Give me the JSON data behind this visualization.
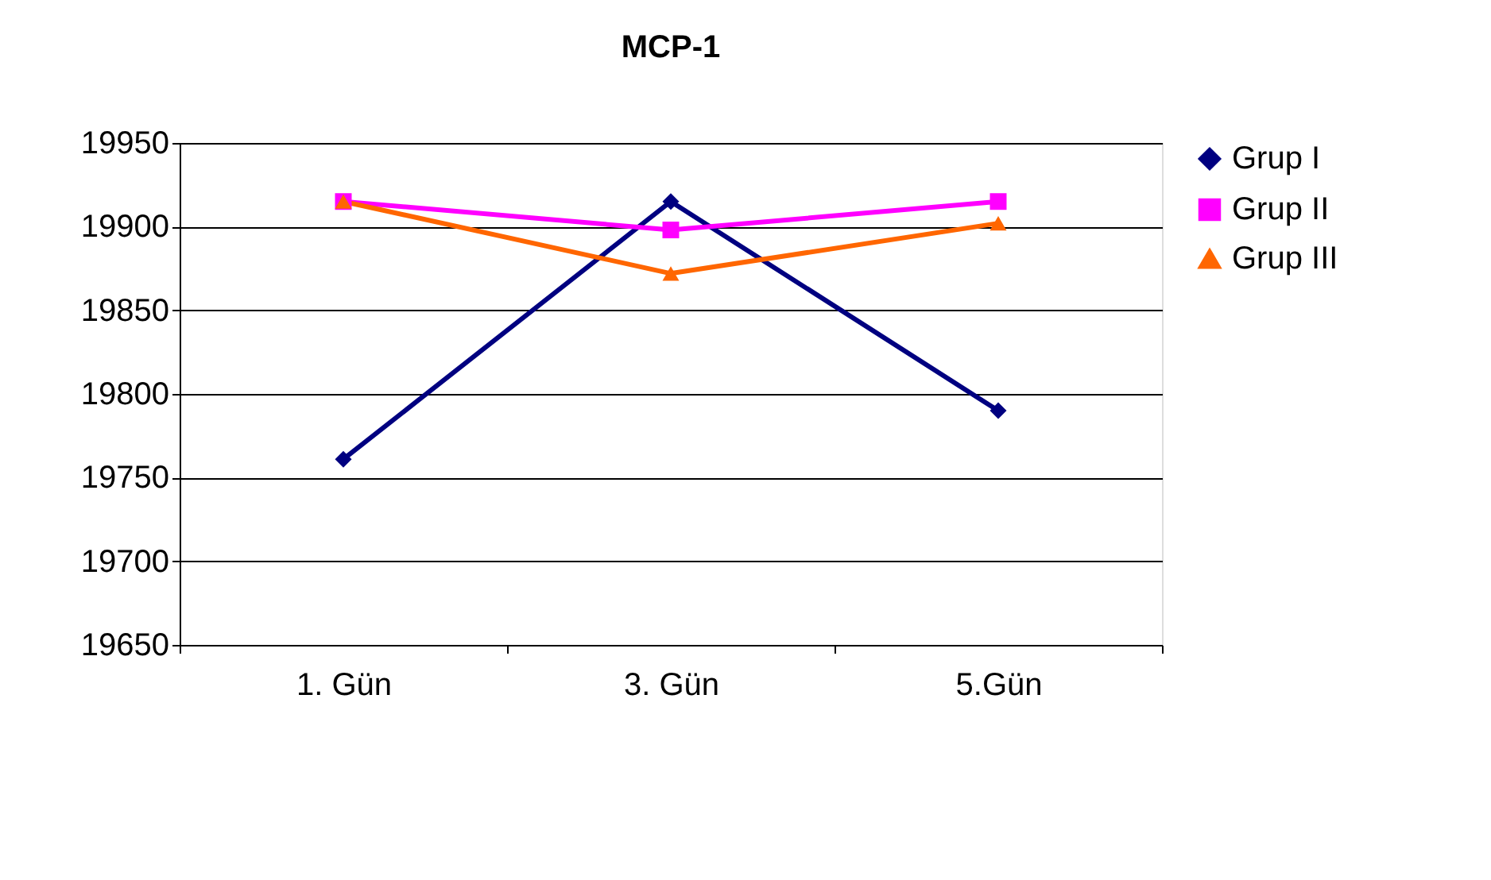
{
  "chart_data": {
    "type": "line",
    "title": "MCP-1",
    "categories": [
      "1. Gün",
      "3. Gün",
      "5.Gün"
    ],
    "series": [
      {
        "name": "Grup I",
        "color": "#000080",
        "marker": "diamond",
        "values": [
          19761,
          19915,
          19790
        ]
      },
      {
        "name": "Grup II",
        "color": "#ff00ff",
        "marker": "square",
        "values": [
          19915,
          19898,
          19915
        ]
      },
      {
        "name": "Grup III",
        "color": "#ff6600",
        "marker": "triangle",
        "values": [
          19915,
          19872,
          19902
        ]
      }
    ],
    "ylim": [
      19650,
      19950
    ],
    "yticks": [
      19650,
      19700,
      19750,
      19800,
      19850,
      19900,
      19950
    ],
    "grid": "y",
    "legend": "right",
    "line_style": "solid"
  }
}
